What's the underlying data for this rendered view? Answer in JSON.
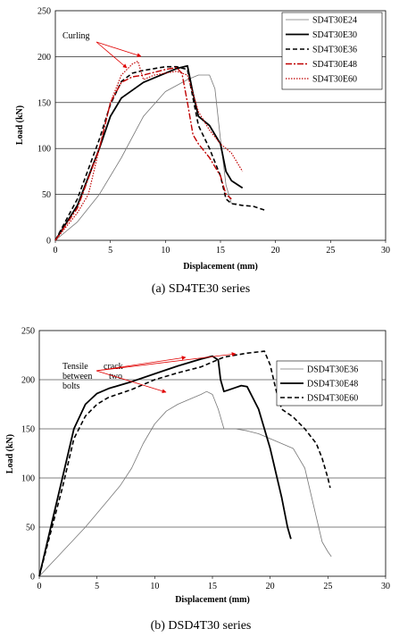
{
  "chart_data": [
    {
      "type": "line",
      "caption": "(a) SD4TE30 series",
      "xlabel": "Displacement (mm)",
      "ylabel": "Load (kN)",
      "xlim": [
        0,
        30
      ],
      "ylim": [
        0,
        250
      ],
      "xticks": [
        0,
        5,
        10,
        15,
        20,
        25,
        30
      ],
      "yticks": [
        0,
        50,
        100,
        150,
        200,
        250
      ],
      "grid": "horizontal",
      "legend_position": "top-right",
      "annotations": [
        {
          "text": "Curling"
        }
      ],
      "series": [
        {
          "name": "SD4T30E24",
          "color": "#777777",
          "style": "solid-thin",
          "points": [
            [
              0,
              0
            ],
            [
              2,
              20
            ],
            [
              4,
              50
            ],
            [
              6,
              90
            ],
            [
              8,
              135
            ],
            [
              10,
              162
            ],
            [
              12,
              175
            ],
            [
              13,
              180
            ],
            [
              14,
              180
            ],
            [
              14.5,
              165
            ],
            [
              15,
              110
            ],
            [
              15.5,
              60
            ],
            [
              16,
              40
            ],
            [
              16.5,
              40
            ]
          ]
        },
        {
          "name": "SD4T30E30",
          "color": "#000000",
          "style": "solid-thick",
          "points": [
            [
              0,
              0
            ],
            [
              2,
              38
            ],
            [
              4,
              100
            ],
            [
              5,
              135
            ],
            [
              6,
              155
            ],
            [
              8,
              172
            ],
            [
              10,
              182
            ],
            [
              11,
              187
            ],
            [
              12,
              190
            ],
            [
              12.5,
              160
            ],
            [
              13,
              135
            ],
            [
              14,
              125
            ],
            [
              15,
              105
            ],
            [
              15.5,
              75
            ],
            [
              16,
              65
            ],
            [
              17,
              57
            ]
          ]
        },
        {
          "name": "SD4T30E36",
          "color": "#000000",
          "style": "dashed",
          "points": [
            [
              0,
              0
            ],
            [
              2,
              45
            ],
            [
              4,
              110
            ],
            [
              5,
              148
            ],
            [
              6,
              173
            ],
            [
              7,
              182
            ],
            [
              8,
              185
            ],
            [
              10,
              189
            ],
            [
              11,
              189
            ],
            [
              12,
              186
            ],
            [
              12.5,
              155
            ],
            [
              13,
              125
            ],
            [
              14,
              100
            ],
            [
              15,
              70
            ],
            [
              15.5,
              45
            ],
            [
              16,
              40
            ],
            [
              17,
              38
            ],
            [
              18,
              37
            ],
            [
              19,
              33
            ]
          ]
        },
        {
          "name": "SD4T30E48",
          "color": "#c00000",
          "style": "dashdot",
          "points": [
            [
              0,
              0
            ],
            [
              2,
              35
            ],
            [
              4,
              100
            ],
            [
              5,
              150
            ],
            [
              6,
              172
            ],
            [
              7,
              178
            ],
            [
              8,
              180
            ],
            [
              10,
              186
            ],
            [
              11,
              188
            ],
            [
              11.5,
              182
            ],
            [
              12,
              150
            ],
            [
              12.5,
              115
            ],
            [
              13,
              105
            ],
            [
              14,
              90
            ],
            [
              15,
              70
            ],
            [
              15.5,
              50
            ],
            [
              16,
              45
            ]
          ]
        },
        {
          "name": "SD4T30E60",
          "color": "#c00000",
          "style": "dotted",
          "points": [
            [
              0,
              0
            ],
            [
              2,
              30
            ],
            [
              3,
              50
            ],
            [
              4,
              100
            ],
            [
              5,
              150
            ],
            [
              6,
              180
            ],
            [
              7,
              192
            ],
            [
              7.5,
              195
            ],
            [
              8,
              175
            ],
            [
              9,
              180
            ],
            [
              10,
              182
            ],
            [
              11,
              184
            ],
            [
              12,
              180
            ],
            [
              13,
              140
            ],
            [
              14,
              120
            ],
            [
              15,
              105
            ],
            [
              16,
              95
            ],
            [
              17,
              75
            ]
          ]
        }
      ]
    },
    {
      "type": "line",
      "caption": "(b)  DSD4T30  series",
      "xlabel": "Displacement (mm)",
      "ylabel": "Load (kN)",
      "xlim": [
        0,
        30
      ],
      "ylim": [
        0,
        250
      ],
      "xticks": [
        0,
        5,
        10,
        15,
        20,
        25,
        30
      ],
      "yticks": [
        0,
        50,
        100,
        150,
        200,
        250
      ],
      "grid": "horizontal",
      "legend_position": "top-right",
      "annotations": [
        {
          "text": "Tensile"
        },
        {
          "text": "between"
        },
        {
          "text": "bolts"
        },
        {
          "text": "crack"
        },
        {
          "text": "two"
        }
      ],
      "series": [
        {
          "name": "DSD4T30E36",
          "color": "#777777",
          "style": "solid-thin",
          "points": [
            [
              0,
              0
            ],
            [
              2,
              25
            ],
            [
              4,
              50
            ],
            [
              6,
              78
            ],
            [
              7,
              92
            ],
            [
              8,
              110
            ],
            [
              9,
              135
            ],
            [
              10,
              155
            ],
            [
              11,
              168
            ],
            [
              12,
              175
            ],
            [
              13,
              180
            ],
            [
              14,
              185
            ],
            [
              14.5,
              188
            ],
            [
              15,
              185
            ],
            [
              15.5,
              170
            ],
            [
              16,
              150
            ],
            [
              17,
              150
            ],
            [
              18,
              148
            ],
            [
              19,
              145
            ],
            [
              20,
              140
            ],
            [
              21,
              135
            ],
            [
              22,
              130
            ],
            [
              23,
              110
            ],
            [
              24,
              60
            ],
            [
              24.5,
              35
            ],
            [
              25,
              25
            ],
            [
              25.3,
              20
            ]
          ]
        },
        {
          "name": "DSD4T30E48",
          "color": "#000000",
          "style": "solid-thick",
          "points": [
            [
              0,
              0
            ],
            [
              1,
              50
            ],
            [
              2,
              100
            ],
            [
              3,
              150
            ],
            [
              4,
              175
            ],
            [
              5,
              186
            ],
            [
              6,
              191
            ],
            [
              8,
              198
            ],
            [
              10,
              206
            ],
            [
              12,
              214
            ],
            [
              14,
              221
            ],
            [
              15,
              224
            ],
            [
              15.5,
              220
            ],
            [
              15.7,
              200
            ],
            [
              16,
              188
            ],
            [
              17,
              192
            ],
            [
              17.5,
              194
            ],
            [
              18,
              193
            ],
            [
              19,
              170
            ],
            [
              20,
              130
            ],
            [
              21,
              80
            ],
            [
              21.5,
              50
            ],
            [
              21.8,
              38
            ]
          ]
        },
        {
          "name": "DSD4T30E60",
          "color": "#000000",
          "style": "dashed",
          "points": [
            [
              0,
              0
            ],
            [
              1,
              45
            ],
            [
              2,
              90
            ],
            [
              3,
              140
            ],
            [
              4,
              163
            ],
            [
              5,
              175
            ],
            [
              6,
              182
            ],
            [
              8,
              190
            ],
            [
              10,
              200
            ],
            [
              12,
              207
            ],
            [
              14,
              213
            ],
            [
              15,
              218
            ],
            [
              16,
              223
            ],
            [
              18,
              227
            ],
            [
              19.5,
              229
            ],
            [
              20,
              215
            ],
            [
              20.5,
              190
            ],
            [
              21,
              170
            ],
            [
              22,
              162
            ],
            [
              23,
              150
            ],
            [
              24,
              135
            ],
            [
              24.5,
              120
            ],
            [
              25,
              100
            ],
            [
              25.2,
              90
            ]
          ]
        }
      ]
    }
  ]
}
